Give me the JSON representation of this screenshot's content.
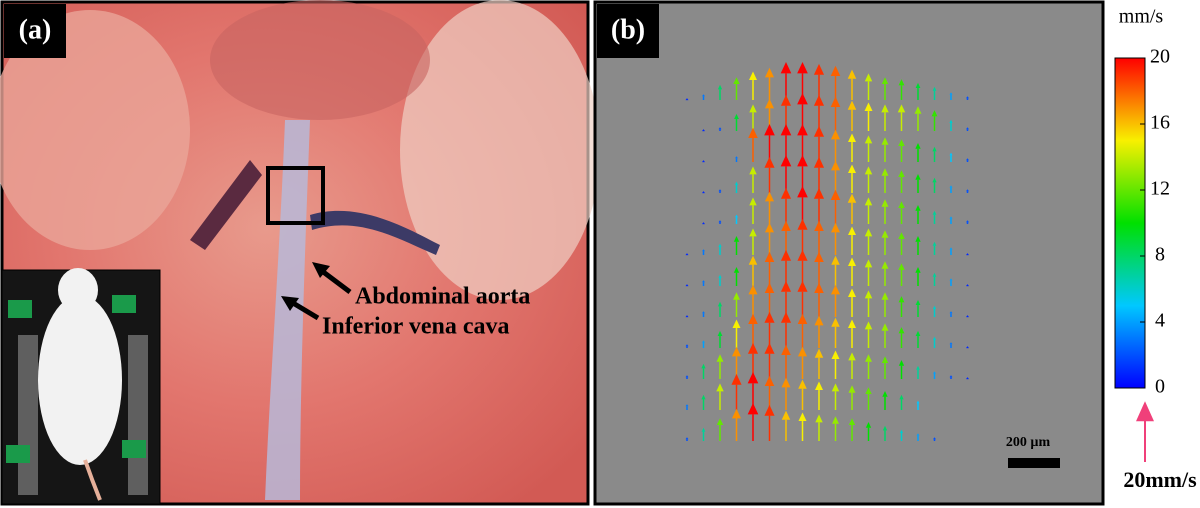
{
  "panel_a": {
    "label": "(a)",
    "annotations": [
      "Abdominal aorta",
      "Inferior vena cava"
    ]
  },
  "panel_b": {
    "label": "(b)",
    "scale_bar": "200 µm",
    "velocity_field": {
      "rows": [
        [
          1,
          3,
          8,
          12,
          15,
          17,
          20,
          20,
          19,
          18,
          16,
          14,
          12,
          11,
          9,
          7,
          4,
          2
        ],
        [
          null,
          1,
          2,
          9,
          14,
          17,
          19,
          20,
          19,
          18,
          16,
          15,
          14,
          14,
          13,
          11,
          6,
          2
        ],
        [
          null,
          1,
          null,
          3,
          18,
          20,
          20,
          20,
          19,
          17,
          15,
          14,
          13,
          12,
          10,
          8,
          5,
          2
        ],
        [
          null,
          1,
          2,
          6,
          14,
          19,
          20,
          20,
          19,
          17,
          15,
          14,
          13,
          12,
          10,
          8,
          4,
          2
        ],
        [
          null,
          1,
          2,
          5,
          14,
          17,
          19,
          20,
          19,
          18,
          16,
          14,
          13,
          12,
          10,
          7,
          4,
          2
        ],
        [
          1,
          3,
          6,
          10,
          14,
          17,
          18,
          19,
          18,
          17,
          15,
          14,
          13,
          12,
          10,
          7,
          4,
          1
        ],
        [
          1,
          3,
          6,
          10,
          16,
          18,
          19,
          19,
          18,
          16,
          15,
          14,
          13,
          12,
          10,
          7,
          4,
          1
        ],
        [
          1,
          3,
          8,
          13,
          17,
          18,
          19,
          19,
          18,
          17,
          15,
          14,
          13,
          11,
          9,
          6,
          3,
          1
        ],
        [
          2,
          4,
          9,
          15,
          18,
          19,
          19,
          18,
          17,
          16,
          15,
          14,
          13,
          11,
          9,
          6,
          3,
          1
        ],
        [
          2,
          8,
          13,
          17,
          19,
          19,
          18,
          17,
          16,
          15,
          14,
          13,
          12,
          10,
          7,
          4,
          2,
          1
        ],
        [
          3,
          8,
          14,
          19,
          20,
          18,
          17,
          16,
          15,
          14,
          13,
          12,
          10,
          8,
          5,
          null,
          null,
          null
        ],
        [
          2,
          7,
          12,
          17,
          20,
          19,
          16,
          15,
          14,
          13,
          12,
          10,
          8,
          6,
          4,
          2,
          null,
          null
        ]
      ]
    },
    "colorbar": {
      "label": "mm/s",
      "lim": [
        0,
        20
      ],
      "ticks": [
        0,
        4,
        8,
        12,
        16,
        20
      ]
    },
    "reference_arrow": {
      "value": 20,
      "label": "20mm/s"
    }
  }
}
